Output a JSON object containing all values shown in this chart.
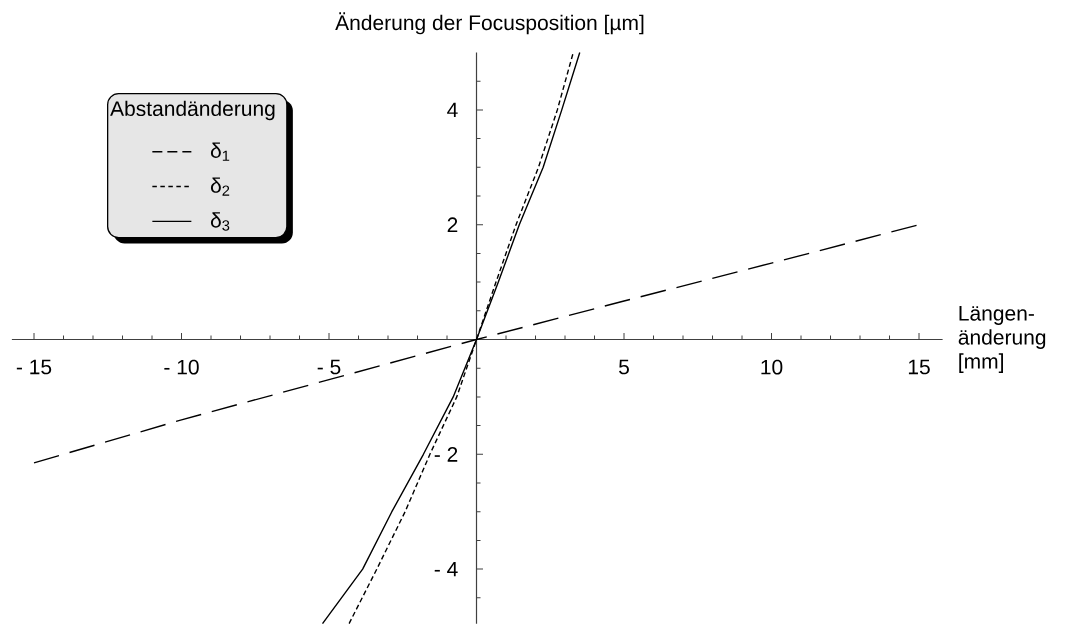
{
  "chart_data": {
    "type": "line",
    "ylabel": "Änderung der Focusposition [µm]",
    "xlabel": "Längen-änderung [mm]",
    "legend_title": "Abstandänderung",
    "legend": "top left",
    "xlim": [
      -15.75,
      15.8
    ],
    "ylim": [
      -4.95,
      5
    ],
    "xticks": [
      {
        "value": -15,
        "label": "- 15"
      },
      {
        "value": -14,
        "label": null
      },
      {
        "value": -13,
        "label": null
      },
      {
        "value": -12,
        "label": null
      },
      {
        "value": -11,
        "label": null
      },
      {
        "value": -10,
        "label": "- 10"
      },
      {
        "value": -9,
        "label": null
      },
      {
        "value": -8,
        "label": null
      },
      {
        "value": -7,
        "label": null
      },
      {
        "value": -6,
        "label": null
      },
      {
        "value": -5,
        "label": "- 5"
      },
      {
        "value": -4,
        "label": null
      },
      {
        "value": -3,
        "label": null
      },
      {
        "value": -2,
        "label": null
      },
      {
        "value": -1,
        "label": null
      },
      {
        "value": 1,
        "label": null
      },
      {
        "value": 2,
        "label": null
      },
      {
        "value": 3,
        "label": null
      },
      {
        "value": 4,
        "label": null
      },
      5,
      {
        "value": 6,
        "label": null
      },
      {
        "value": 7,
        "label": null
      },
      {
        "value": 8,
        "label": null
      },
      {
        "value": 9,
        "label": null
      },
      10,
      {
        "value": 11,
        "label": null
      },
      {
        "value": 12,
        "label": null
      },
      {
        "value": 13,
        "label": null
      },
      {
        "value": 14,
        "label": null
      },
      15
    ],
    "yticks": [
      {
        "value": -4.5,
        "label": null
      },
      {
        "value": -4,
        "label": "- 4"
      },
      {
        "value": -3.5,
        "label": null
      },
      {
        "value": -3,
        "label": null
      },
      {
        "value": -2.5,
        "label": null
      },
      {
        "value": -2,
        "label": "- 2"
      },
      {
        "value": -1.5,
        "label": null
      },
      {
        "value": -1,
        "label": null
      },
      {
        "value": -0.5,
        "label": null
      },
      {
        "value": 0.5,
        "label": null
      },
      {
        "value": 1,
        "label": null
      },
      {
        "value": 1.5,
        "label": null
      },
      2,
      {
        "value": 2.5,
        "label": null
      },
      {
        "value": 3,
        "label": null
      },
      {
        "value": 3.5,
        "label": null
      },
      4,
      {
        "value": 4.5,
        "label": null
      }
    ],
    "series": [
      {
        "name": "δ$_{1}$",
        "color": "#000000",
        "line_style": "dashed",
        "x": [
          -15,
          -10,
          -5,
          0,
          5,
          10,
          15
        ],
        "values": [
          -2.15,
          -1.4,
          -0.7,
          0,
          0.67,
          1.33,
          2.0
        ]
      },
      {
        "name": "δ$_{2}$",
        "color": "#000000",
        "line_style": "dotted",
        "x": [
          -4.32,
          -3.38,
          -2.42,
          -1.58,
          -0.67,
          0,
          0.66,
          1.34,
          2.1,
          2.74,
          3.28
        ],
        "values": [
          -4.95,
          -4,
          -3,
          -2,
          -1,
          0,
          1,
          2,
          3,
          4,
          5
        ]
      },
      {
        "name": "δ$_{3}$",
        "color": "#000000",
        "line_style": "solid",
        "x": [
          -5.22,
          -3.86,
          -2.87,
          -1.8,
          -0.79,
          0,
          0.74,
          1.45,
          2.26,
          2.89,
          3.5
        ],
        "values": [
          -4.95,
          -4,
          -3,
          -2,
          -1,
          0,
          1,
          2,
          3,
          4,
          5
        ]
      }
    ]
  }
}
